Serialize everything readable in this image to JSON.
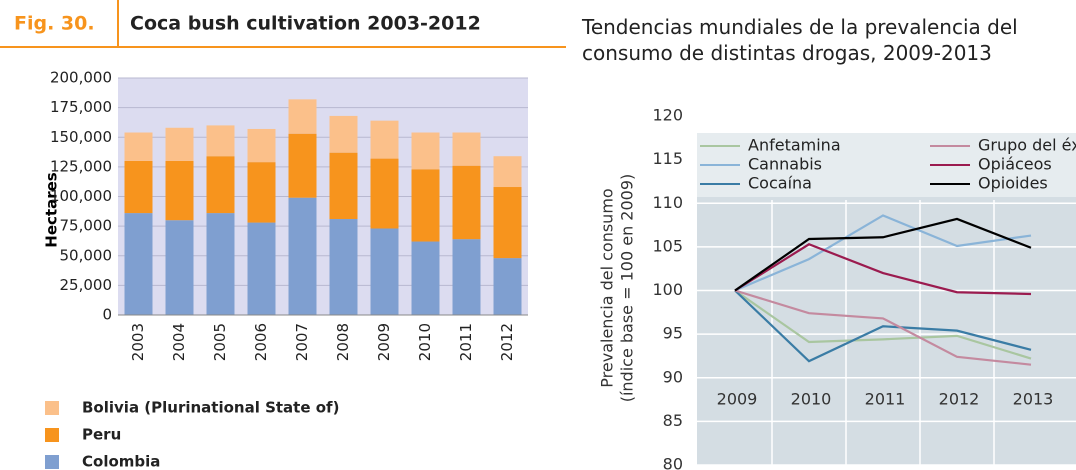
{
  "chart_data": [
    {
      "type": "stacked_bar",
      "figure_label": "Fig. 30.",
      "title": "Coca bush cultivation 2003-2012",
      "ylabel": "Hectares",
      "categories": [
        "2003",
        "2004",
        "2005",
        "2006",
        "2007",
        "2008",
        "2009",
        "2010",
        "2011",
        "2012"
      ],
      "series": [
        {
          "name": "Colombia",
          "color": "#7f9fd0",
          "values": [
            86000,
            80000,
            86000,
            78000,
            99000,
            81000,
            73000,
            62000,
            64000,
            48000
          ]
        },
        {
          "name": "Peru",
          "color": "#f7941d",
          "values": [
            44000,
            50000,
            48000,
            51000,
            54000,
            56000,
            59000,
            61000,
            62000,
            60000
          ]
        },
        {
          "name": "Bolivia (Plurinational State of)",
          "color": "#fbc08a",
          "values": [
            24000,
            28000,
            26000,
            28000,
            29000,
            31000,
            32000,
            31000,
            28000,
            26000
          ]
        }
      ],
      "ylim": [
        0,
        200000
      ],
      "yticks": [
        0,
        {
          "value": 25000,
          "label": "25,000"
        },
        {
          "value": 50000,
          "label": "50,000"
        },
        {
          "value": 75000,
          "label": "75,000"
        },
        {
          "value": 100000,
          "label": "100,000"
        },
        {
          "value": 125000,
          "label": "125,000"
        },
        {
          "value": 150000,
          "label": "150,000"
        },
        {
          "value": 175000,
          "label": "175,000"
        },
        {
          "value": 200000,
          "label": "200,000"
        }
      ],
      "grid": true
    },
    {
      "type": "line",
      "title": "Tendencias mundiales de la prevalencia del consumo de distintas drogas, 2009-2013",
      "ylabel": [
        "Prevalencia del consumo",
        "(índice base = 100 en 2009)"
      ],
      "categories": [
        "2009",
        "2010",
        "2011",
        "2012",
        "2013"
      ],
      "series": [
        {
          "name": "Anfetamina",
          "color": "#a9c6a0",
          "values": [
            100,
            94.1,
            94.4,
            94.8,
            92.2
          ]
        },
        {
          "name": "Cannabis",
          "color": "#8ab4d8",
          "values": [
            100,
            103.6,
            108.6,
            105.1,
            106.3
          ]
        },
        {
          "name": "Cocaína",
          "color": "#3a7ca5",
          "values": [
            100,
            91.9,
            95.9,
            95.4,
            93.2
          ]
        },
        {
          "name": "Grupo del éxtasis",
          "color": "#c48a9f",
          "values": [
            100,
            97.4,
            96.8,
            92.4,
            91.5
          ]
        },
        {
          "name": "Opiáceos",
          "color": "#9b1b4f",
          "values": [
            100,
            105.3,
            102.0,
            99.8,
            99.6
          ]
        },
        {
          "name": "Opioides",
          "color": "#000000",
          "values": [
            100,
            105.9,
            106.1,
            108.2,
            104.9
          ]
        }
      ],
      "ylim": [
        80,
        120
      ],
      "yticks": [
        80,
        85,
        90,
        95,
        100,
        105,
        110,
        115,
        120
      ],
      "grid": true
    }
  ]
}
